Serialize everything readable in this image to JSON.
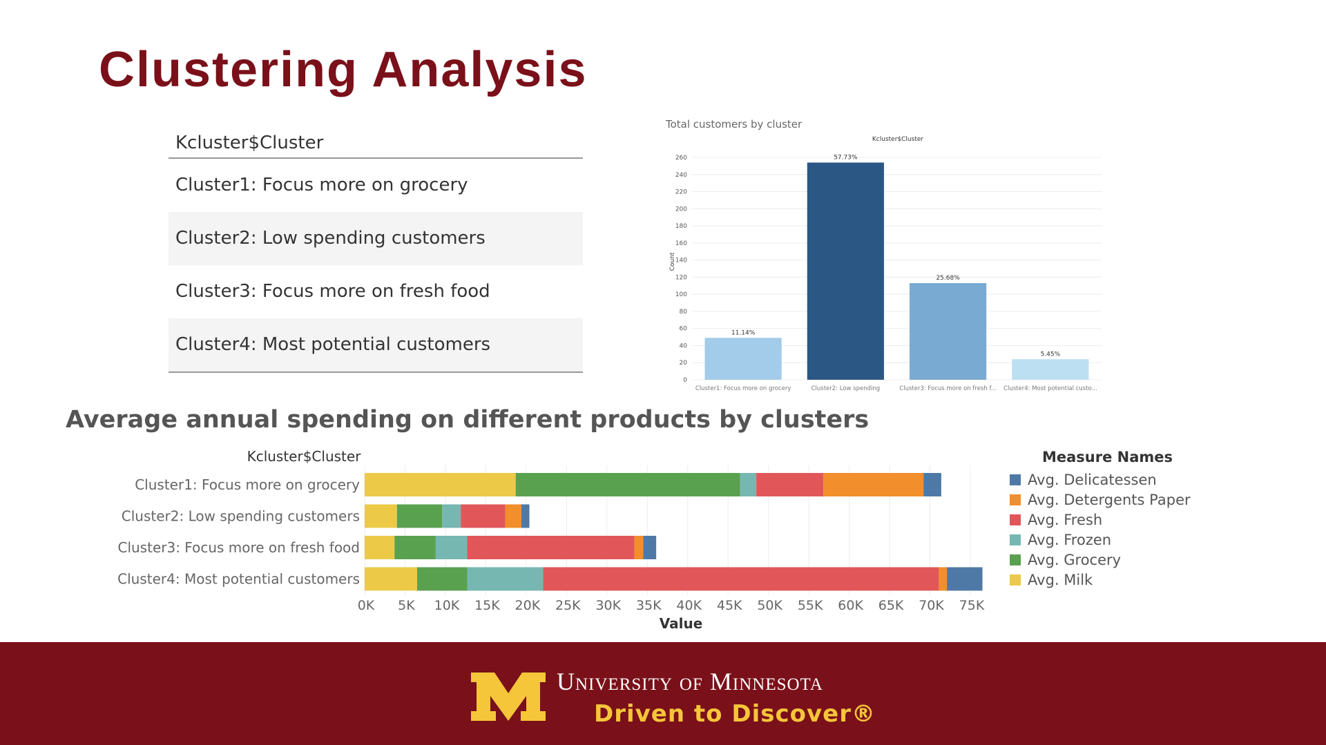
{
  "slide": {
    "title": "Clustering Analysis",
    "section_title": "Average annual spending on different products by clusters"
  },
  "cluster_table": {
    "header": "Kcluster$Cluster",
    "rows": [
      "Cluster1: Focus more on grocery",
      "Cluster2: Low spending customers",
      "Cluster3: Focus more on fresh food",
      "Cluster4: Most potential customers"
    ]
  },
  "footer": {
    "university": "University of Minnesota",
    "tagline": "Driven to Discover®"
  },
  "chart_data": [
    {
      "type": "bar",
      "title": "Total customers by cluster",
      "subtitle": "Kcluster$Cluster",
      "ylabel": "Count",
      "xlabel": "",
      "ylim": [
        0,
        260
      ],
      "yticks": [
        0,
        20,
        40,
        60,
        80,
        100,
        120,
        140,
        160,
        180,
        200,
        220,
        240,
        260
      ],
      "categories": [
        "Cluster1: Focus more on grocery",
        "Cluster2: Low spending",
        "Cluster3: Focus more on fresh f...",
        "Cluster4: Most potential custo..."
      ],
      "values": [
        49,
        254,
        113,
        24
      ],
      "labels": [
        "11.14%",
        "57.73%",
        "25.68%",
        "5.45%"
      ],
      "colors": [
        "#a3cbea",
        "#2b5784",
        "#78aad2",
        "#bcdff2"
      ],
      "grid": true
    },
    {
      "type": "bar",
      "orientation": "horizontal",
      "stacked": true,
      "title": "Average annual spending on different products by clusters",
      "ylabel": "Kcluster$Cluster",
      "xlabel": "Value",
      "xlim": [
        0,
        75000
      ],
      "xticks": [
        "0K",
        "5K",
        "10K",
        "15K",
        "20K",
        "25K",
        "30K",
        "35K",
        "40K",
        "45K",
        "50K",
        "55K",
        "60K",
        "65K",
        "70K",
        "75K"
      ],
      "categories": [
        "Cluster1: Focus more on grocery",
        "Cluster2: Low spending customers",
        "Cluster3: Focus more on fresh food",
        "Cluster4: Most potential customers"
      ],
      "series": [
        {
          "name": "Avg. Milk",
          "color": "#edc948",
          "values": [
            18700,
            4000,
            3700,
            6500
          ]
        },
        {
          "name": "Avg. Grocery",
          "color": "#59a14f",
          "values": [
            27800,
            5600,
            5100,
            6200
          ]
        },
        {
          "name": "Avg. Frozen",
          "color": "#76b7b2",
          "values": [
            2000,
            2300,
            3900,
            9400
          ]
        },
        {
          "name": "Avg. Fresh",
          "color": "#e15759",
          "values": [
            8300,
            5500,
            20700,
            49000
          ]
        },
        {
          "name": "Avg. Detergents Paper",
          "color": "#f28e2b",
          "values": [
            12400,
            2000,
            1100,
            1000
          ]
        },
        {
          "name": "Avg. Delicatessen",
          "color": "#4e79a7",
          "values": [
            2200,
            1000,
            1600,
            4400
          ]
        }
      ],
      "legend": {
        "title": "Measure Names",
        "placement": "right",
        "items": [
          "Avg. Delicatessen",
          "Avg. Detergents Paper",
          "Avg. Fresh",
          "Avg. Frozen",
          "Avg. Grocery",
          "Avg. Milk"
        ],
        "colors": [
          "#4e79a7",
          "#f28e2b",
          "#e15759",
          "#76b7b2",
          "#59a14f",
          "#edc948"
        ]
      },
      "grid": true
    }
  ]
}
